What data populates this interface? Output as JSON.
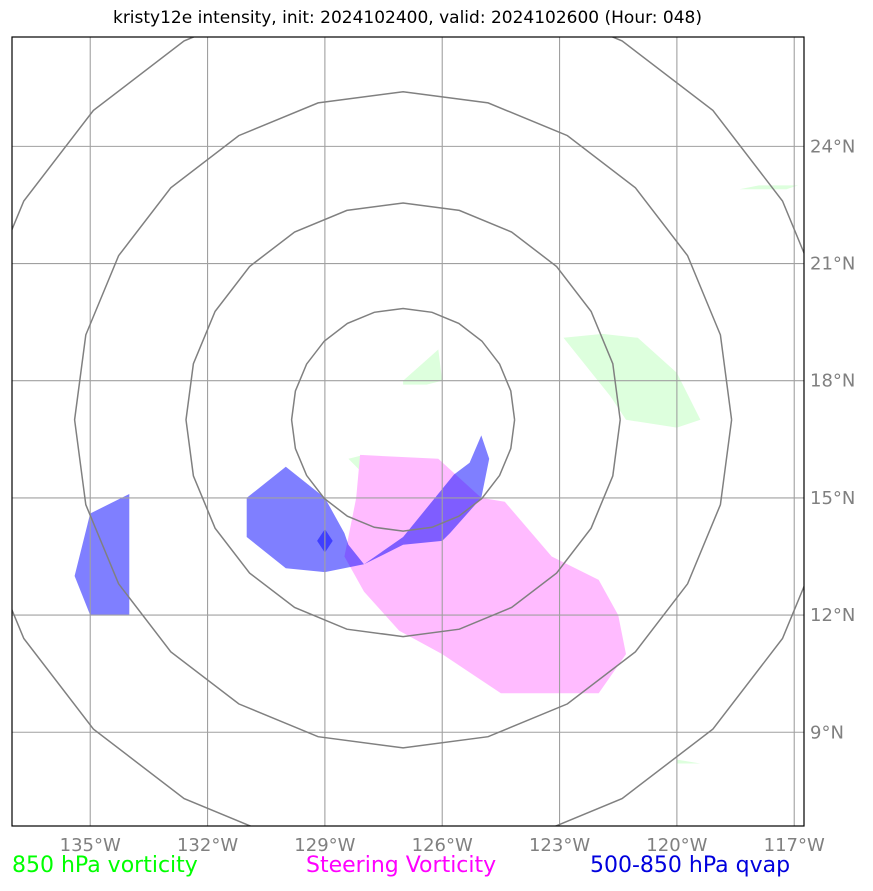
{
  "title": "kristy12e intensity, init: 2024102400, valid: 2024102600 (Hour: 048)",
  "map": {
    "lon_range": [
      -137,
      -116.75
    ],
    "lat_range": [
      6.6,
      26.8
    ],
    "lon_ticks": [
      {
        "value": -135,
        "label": "135°W"
      },
      {
        "value": -132,
        "label": "132°W"
      },
      {
        "value": -129,
        "label": "129°W"
      },
      {
        "value": -126,
        "label": "126°W"
      },
      {
        "value": -123,
        "label": "123°W"
      },
      {
        "value": -120,
        "label": "120°W"
      },
      {
        "value": -117,
        "label": "117°W"
      }
    ],
    "lat_ticks": [
      {
        "value": 24,
        "label": "24°N"
      },
      {
        "value": 21,
        "label": "21°N"
      },
      {
        "value": 18,
        "label": "18°N"
      },
      {
        "value": 15,
        "label": "15°N"
      },
      {
        "value": 12,
        "label": "12°N"
      },
      {
        "value": 9,
        "label": "9°N"
      }
    ],
    "range_rings": {
      "center": [
        -127,
        17
      ],
      "radii_deg": [
        2.85,
        5.55,
        8.4,
        11.2
      ]
    },
    "layers": [
      {
        "name": "850 hPa vorticity",
        "color": "#00ff00",
        "fill": "#ddffdd",
        "polygons": [
          [
            [
              -127.0,
              18.0
            ],
            [
              -126.1,
              18.8
            ],
            [
              -126.0,
              18.0
            ],
            [
              -126.4,
              17.9
            ],
            [
              -127.0,
              17.9
            ]
          ],
          [
            [
              -122.9,
              19.1
            ],
            [
              -121.9,
              19.2
            ],
            [
              -121.0,
              19.1
            ],
            [
              -120.0,
              18.2
            ],
            [
              -119.4,
              17.0
            ],
            [
              -120.0,
              16.8
            ],
            [
              -121.3,
              17.0
            ],
            [
              -121.7,
              17.6
            ],
            [
              -122.9,
              19.1
            ]
          ],
          [
            [
              -118.4,
              22.9
            ],
            [
              -117.9,
              23.0
            ],
            [
              -116.9,
              23.0
            ],
            [
              -117.2,
              22.9
            ],
            [
              -118.4,
              22.9
            ]
          ],
          [
            [
              -120.0,
              8.3
            ],
            [
              -119.4,
              8.2
            ],
            [
              -120.0,
              8.2
            ]
          ],
          [
            [
              -128.4,
              16.0
            ],
            [
              -128.0,
              16.1
            ],
            [
              -128.1,
              15.7
            ]
          ]
        ]
      },
      {
        "name": "Steering Vorticity",
        "color": "#ff00ff",
        "fill": "#ffbbff",
        "polygons": [
          [
            [
              -128.1,
              16.1
            ],
            [
              -126.1,
              16.0
            ],
            [
              -125.0,
              15.0
            ],
            [
              -124.4,
              14.9
            ],
            [
              -123.2,
              13.5
            ],
            [
              -122.0,
              12.9
            ],
            [
              -121.5,
              12.0
            ],
            [
              -121.3,
              11.0
            ],
            [
              -122.0,
              10.0
            ],
            [
              -123.5,
              10.0
            ],
            [
              -124.5,
              10.0
            ],
            [
              -125.1,
              10.4
            ],
            [
              -126.0,
              11.0
            ],
            [
              -127.1,
              11.6
            ],
            [
              -128.0,
              12.6
            ],
            [
              -128.5,
              13.5
            ],
            [
              -128.4,
              14.0
            ],
            [
              -128.2,
              15.0
            ],
            [
              -128.1,
              16.1
            ]
          ]
        ]
      },
      {
        "name": "500-850 hPa qvap",
        "color": "#0000dd",
        "fill": "rgba(0,0,255,0.5)",
        "polygons": [
          [
            [
              -130.0,
              15.8
            ],
            [
              -129.0,
              15.0
            ],
            [
              -128.5,
              14.1
            ],
            [
              -128.4,
              13.8
            ],
            [
              -128.0,
              13.3
            ],
            [
              -127.0,
              13.8
            ],
            [
              -126.0,
              13.9
            ],
            [
              -125.8,
              14.1
            ],
            [
              -125.0,
              15.0
            ],
            [
              -124.8,
              16.0
            ],
            [
              -125.0,
              16.6
            ],
            [
              -125.3,
              15.9
            ],
            [
              -125.7,
              15.6
            ],
            [
              -127.0,
              14.0
            ],
            [
              -128.0,
              13.3
            ],
            [
              -129.0,
              13.1
            ],
            [
              -130.0,
              13.2
            ],
            [
              -131.0,
              14.0
            ],
            [
              -131.0,
              15.0
            ],
            [
              -130.0,
              15.8
            ]
          ],
          [
            [
              -135.0,
              14.6
            ],
            [
              -134.0,
              15.1
            ],
            [
              -134.0,
              14.0
            ],
            [
              -134.0,
              12.0
            ],
            [
              -135.0,
              12.0
            ],
            [
              -135.4,
              13.0
            ],
            [
              -135.0,
              14.6
            ]
          ],
          [
            [
              -129.0,
              14.2
            ],
            [
              -128.8,
              13.9
            ],
            [
              -129.0,
              13.6
            ],
            [
              -129.2,
              13.9
            ]
          ]
        ]
      }
    ]
  },
  "legend": [
    {
      "label": "850 hPa vorticity",
      "color": "#00ff00"
    },
    {
      "label": "Steering Vorticity",
      "color": "#ff00ff"
    },
    {
      "label": "500-850 hPa qvap",
      "color": "#0000dd"
    }
  ]
}
